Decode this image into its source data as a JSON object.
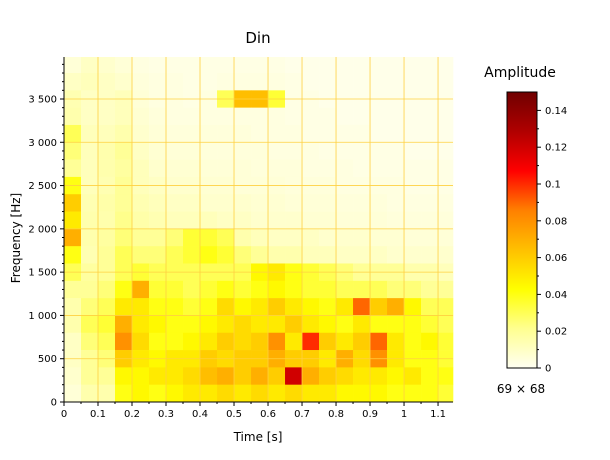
{
  "chart_data": {
    "type": "heatmap",
    "title": "Din",
    "xlabel": "Time [s]",
    "ylabel": "Frequency [Hz]",
    "xlim": [
      0,
      1.144
    ],
    "ylim": [
      0,
      3985
    ],
    "xticks": [
      0,
      0.1,
      0.2,
      0.3,
      0.4,
      0.5,
      0.6,
      0.7,
      0.8,
      0.9,
      1,
      1.1
    ],
    "xtick_labels": [
      "0",
      "0.1",
      "0.2",
      "0.3",
      "0.4",
      "0.5",
      "0.6",
      "0.7",
      "0.8",
      "0.9",
      "1",
      "1.1"
    ],
    "yticks": [
      0,
      500,
      1000,
      1500,
      2000,
      2500,
      3000,
      3500
    ],
    "ytick_labels": [
      "0",
      "500",
      "1 000",
      "1 500",
      "2 000",
      "2 500",
      "3 000",
      "3 500"
    ],
    "grid": true,
    "colorbar": {
      "title": "Amplitude",
      "range": [
        0,
        0.15
      ],
      "ticks": [
        0,
        0.02,
        0.04,
        0.06,
        0.08,
        0.1,
        0.12,
        0.14
      ],
      "tick_labels": [
        "0",
        "0.02",
        "0.04",
        "0.06",
        "0.08",
        "0.1",
        "0.12",
        "0.14"
      ],
      "colormap": [
        "#fffff2",
        "#ffff90",
        "#ffff00",
        "#ffc000",
        "#ff8000",
        "#ff0000",
        "#b00000",
        "#700000"
      ]
    },
    "dimensions_label": "69 × 68",
    "time_bins": [
      0,
      0.05,
      0.1,
      0.15,
      0.2,
      0.25,
      0.3,
      0.35,
      0.4,
      0.45,
      0.5,
      0.55,
      0.6,
      0.65,
      0.7,
      0.75,
      0.8,
      0.85,
      0.9,
      0.95,
      1.0,
      1.05,
      1.1
    ],
    "freq_bins": [
      3800,
      3600,
      3400,
      3200,
      3000,
      2800,
      2600,
      2400,
      2200,
      2000,
      1800,
      1600,
      1400,
      1200,
      1000,
      800,
      600,
      400,
      200,
      0
    ],
    "values": [
      [
        0.006,
        0.01,
        0.008,
        0.006,
        0.004,
        0.003,
        0.003,
        0.003,
        0.003,
        0.003,
        0.003,
        0.003,
        0.003,
        0.002,
        0.002,
        0.002,
        0.002,
        0.002,
        0.002,
        0.002,
        0.002,
        0.002,
        0.002
      ],
      [
        0.01,
        0.012,
        0.01,
        0.008,
        0.005,
        0.004,
        0.004,
        0.003,
        0.003,
        0.004,
        0.004,
        0.004,
        0.004,
        0.003,
        0.002,
        0.002,
        0.002,
        0.002,
        0.002,
        0.002,
        0.002,
        0.002,
        0.002
      ],
      [
        0.014,
        0.01,
        0.01,
        0.012,
        0.006,
        0.004,
        0.004,
        0.003,
        0.004,
        0.03,
        0.065,
        0.065,
        0.035,
        0.003,
        0.003,
        0.002,
        0.002,
        0.002,
        0.002,
        0.002,
        0.002,
        0.002,
        0.002
      ],
      [
        0.015,
        0.01,
        0.01,
        0.012,
        0.007,
        0.005,
        0.004,
        0.004,
        0.004,
        0.004,
        0.004,
        0.004,
        0.004,
        0.003,
        0.003,
        0.003,
        0.002,
        0.002,
        0.002,
        0.002,
        0.002,
        0.002,
        0.002
      ],
      [
        0.03,
        0.012,
        0.012,
        0.015,
        0.008,
        0.006,
        0.005,
        0.005,
        0.005,
        0.005,
        0.005,
        0.004,
        0.004,
        0.004,
        0.003,
        0.003,
        0.003,
        0.003,
        0.002,
        0.002,
        0.002,
        0.002,
        0.002
      ],
      [
        0.025,
        0.012,
        0.015,
        0.02,
        0.01,
        0.007,
        0.006,
        0.006,
        0.005,
        0.005,
        0.005,
        0.005,
        0.004,
        0.004,
        0.004,
        0.003,
        0.003,
        0.003,
        0.003,
        0.003,
        0.002,
        0.002,
        0.002
      ],
      [
        0.02,
        0.012,
        0.015,
        0.018,
        0.012,
        0.008,
        0.007,
        0.007,
        0.006,
        0.006,
        0.006,
        0.005,
        0.005,
        0.005,
        0.004,
        0.004,
        0.004,
        0.003,
        0.003,
        0.003,
        0.003,
        0.003,
        0.003
      ],
      [
        0.04,
        0.012,
        0.014,
        0.02,
        0.012,
        0.01,
        0.008,
        0.008,
        0.007,
        0.007,
        0.006,
        0.006,
        0.006,
        0.005,
        0.005,
        0.005,
        0.004,
        0.004,
        0.004,
        0.004,
        0.003,
        0.003,
        0.003
      ],
      [
        0.06,
        0.014,
        0.016,
        0.02,
        0.014,
        0.012,
        0.01,
        0.01,
        0.008,
        0.008,
        0.008,
        0.007,
        0.007,
        0.006,
        0.006,
        0.006,
        0.005,
        0.005,
        0.005,
        0.004,
        0.004,
        0.004,
        0.004
      ],
      [
        0.05,
        0.015,
        0.015,
        0.022,
        0.016,
        0.014,
        0.012,
        0.012,
        0.012,
        0.01,
        0.01,
        0.008,
        0.008,
        0.008,
        0.007,
        0.007,
        0.006,
        0.006,
        0.006,
        0.005,
        0.005,
        0.005,
        0.005
      ],
      [
        0.07,
        0.015,
        0.018,
        0.025,
        0.02,
        0.02,
        0.025,
        0.035,
        0.035,
        0.03,
        0.015,
        0.012,
        0.01,
        0.01,
        0.01,
        0.008,
        0.008,
        0.008,
        0.007,
        0.007,
        0.006,
        0.006,
        0.006
      ],
      [
        0.04,
        0.014,
        0.02,
        0.03,
        0.025,
        0.025,
        0.03,
        0.035,
        0.04,
        0.035,
        0.025,
        0.02,
        0.015,
        0.015,
        0.012,
        0.012,
        0.01,
        0.01,
        0.01,
        0.008,
        0.008,
        0.008,
        0.008
      ],
      [
        0.03,
        0.018,
        0.02,
        0.03,
        0.035,
        0.03,
        0.03,
        0.03,
        0.03,
        0.03,
        0.03,
        0.045,
        0.05,
        0.04,
        0.035,
        0.03,
        0.025,
        0.02,
        0.02,
        0.02,
        0.015,
        0.015,
        0.012
      ],
      [
        0.02,
        0.02,
        0.025,
        0.04,
        0.07,
        0.035,
        0.035,
        0.03,
        0.035,
        0.04,
        0.035,
        0.04,
        0.045,
        0.04,
        0.035,
        0.035,
        0.03,
        0.03,
        0.03,
        0.025,
        0.025,
        0.02,
        0.02
      ],
      [
        0.015,
        0.025,
        0.03,
        0.05,
        0.05,
        0.04,
        0.04,
        0.035,
        0.04,
        0.055,
        0.045,
        0.05,
        0.06,
        0.05,
        0.045,
        0.04,
        0.05,
        0.09,
        0.06,
        0.07,
        0.045,
        0.03,
        0.03
      ],
      [
        0.015,
        0.03,
        0.035,
        0.07,
        0.05,
        0.045,
        0.04,
        0.04,
        0.045,
        0.05,
        0.055,
        0.05,
        0.05,
        0.06,
        0.05,
        0.045,
        0.04,
        0.05,
        0.04,
        0.04,
        0.04,
        0.035,
        0.03
      ],
      [
        0.01,
        0.025,
        0.03,
        0.08,
        0.055,
        0.04,
        0.04,
        0.045,
        0.05,
        0.06,
        0.055,
        0.06,
        0.08,
        0.05,
        0.1,
        0.06,
        0.05,
        0.06,
        0.09,
        0.05,
        0.04,
        0.045,
        0.035
      ],
      [
        0.01,
        0.02,
        0.025,
        0.06,
        0.05,
        0.045,
        0.05,
        0.05,
        0.06,
        0.055,
        0.06,
        0.06,
        0.07,
        0.06,
        0.06,
        0.05,
        0.07,
        0.055,
        0.08,
        0.05,
        0.04,
        0.04,
        0.035
      ],
      [
        0.008,
        0.02,
        0.02,
        0.045,
        0.045,
        0.05,
        0.05,
        0.055,
        0.065,
        0.07,
        0.06,
        0.07,
        0.06,
        0.12,
        0.07,
        0.06,
        0.055,
        0.05,
        0.05,
        0.045,
        0.05,
        0.04,
        0.04
      ],
      [
        0.006,
        0.015,
        0.015,
        0.04,
        0.045,
        0.04,
        0.045,
        0.05,
        0.05,
        0.055,
        0.05,
        0.055,
        0.05,
        0.055,
        0.05,
        0.05,
        0.045,
        0.045,
        0.045,
        0.04,
        0.04,
        0.04,
        0.035
      ]
    ],
    "grid_color": "#ffd040"
  }
}
